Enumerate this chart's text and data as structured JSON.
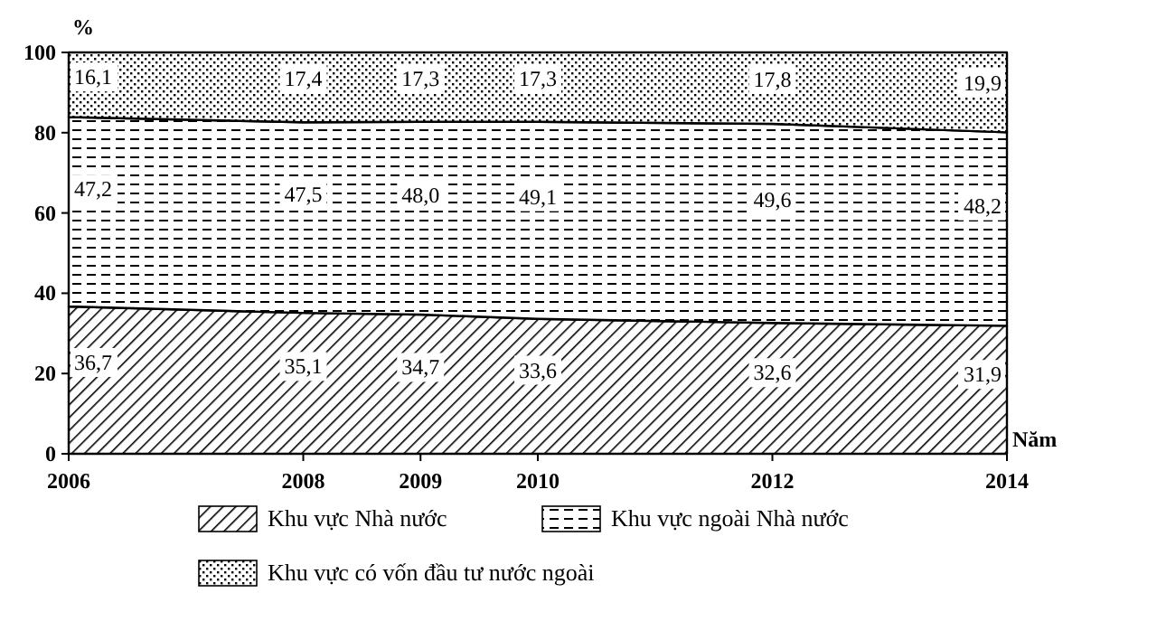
{
  "chart_data": {
    "type": "area",
    "stacked": true,
    "ylabel": "%",
    "xlabel": "Năm",
    "x": [
      2006,
      2008,
      2009,
      2010,
      2012,
      2014
    ],
    "xlim": [
      2006,
      2014
    ],
    "xticks": [
      2006,
      2008,
      2009,
      2010,
      2012,
      2014
    ],
    "ylim": [
      0,
      100
    ],
    "yticks": [
      0,
      20,
      40,
      60,
      80,
      100
    ],
    "series": [
      {
        "name": "Khu vực Nhà nước",
        "color": "#000000",
        "values": [
          36.7,
          35.1,
          34.7,
          33.6,
          32.6,
          31.9
        ],
        "value_labels": [
          "36,7",
          "35,1",
          "34,7",
          "33,6",
          "32,6",
          "31,9"
        ]
      },
      {
        "name": "Khu vực ngoài Nhà nước",
        "color": "#000000",
        "values": [
          47.2,
          47.5,
          48.0,
          49.1,
          49.6,
          48.2
        ],
        "value_labels": [
          "47,2",
          "47,5",
          "48,0",
          "49,1",
          "49,6",
          "48,2"
        ]
      },
      {
        "name": "Khu vực có vốn đầu tư nước ngoài",
        "color": "#000000",
        "values": [
          16.1,
          17.4,
          17.3,
          17.3,
          17.8,
          19.9
        ],
        "value_labels": [
          "16,1",
          "17,4",
          "17,3",
          "17,3",
          "17,8",
          "19,9"
        ]
      }
    ],
    "legend": "bottom"
  }
}
